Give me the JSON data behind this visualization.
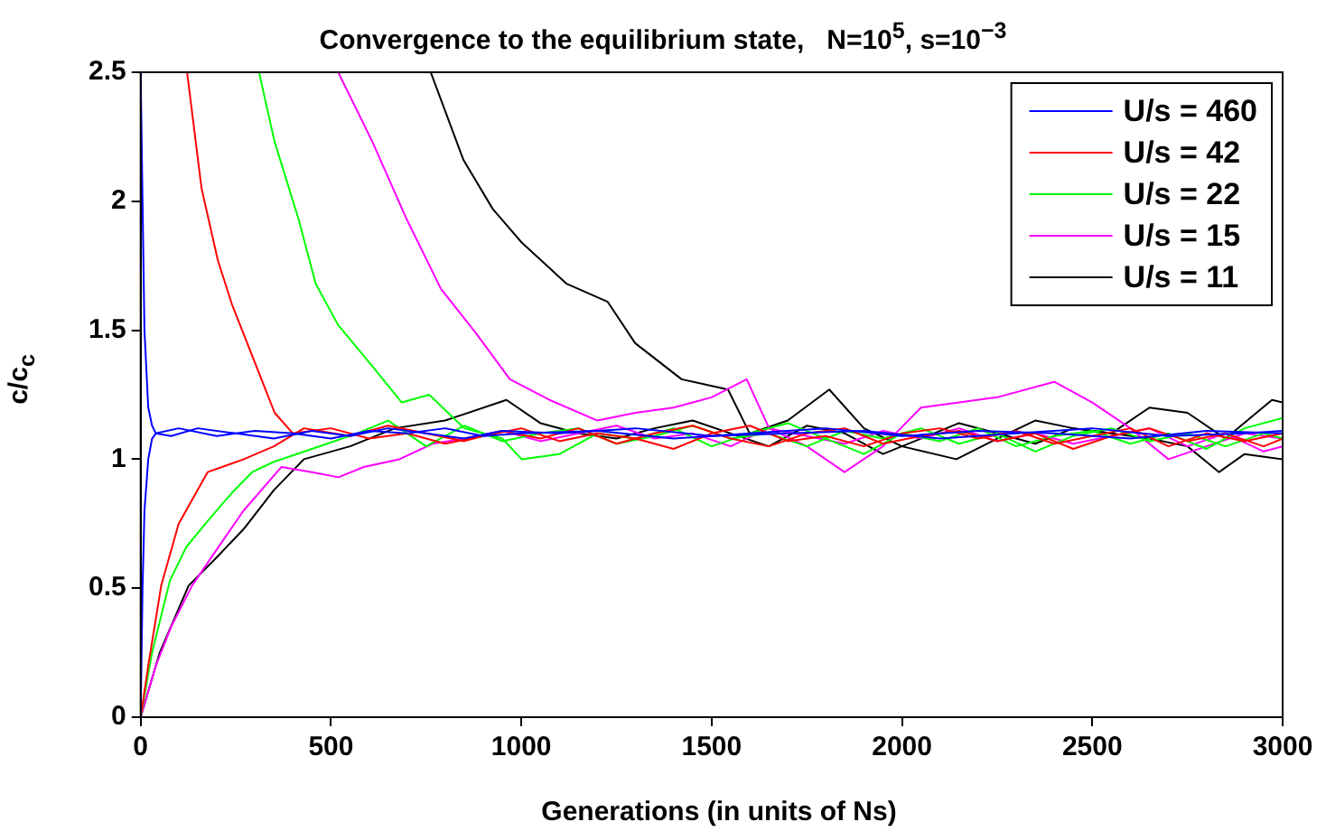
{
  "chart_data": {
    "type": "line",
    "title": "Convergence to the equilibrium state,   N=10$^{5}$, s=10$^{−3}$",
    "xlabel": "Generations (in units of Ns)",
    "ylabel": "c/c$_{c}$",
    "xlim": [
      0,
      3000
    ],
    "ylim": [
      0,
      2.5
    ],
    "xticks": [
      0,
      500,
      1000,
      1500,
      2000,
      2500,
      3000
    ],
    "yticks": [
      0,
      0.5,
      1,
      1.5,
      2,
      2.5
    ],
    "legend": "top right",
    "marker": "none",
    "line_style": "solid",
    "series": [
      {
        "name": "U/s = 460",
        "color": "#0000ff",
        "x": [
          0,
          5,
          10,
          20,
          30,
          40,
          100,
          200,
          300,
          400,
          500,
          600,
          700,
          800,
          900,
          1000,
          1200,
          1400,
          1600,
          1800,
          2000,
          2200,
          2400,
          2600,
          2800,
          3000
        ],
        "values": [
          2.5,
          2.0,
          1.5,
          1.2,
          1.13,
          1.1,
          1.12,
          1.09,
          1.11,
          1.1,
          1.08,
          1.11,
          1.1,
          1.12,
          1.09,
          1.1,
          1.11,
          1.08,
          1.1,
          1.12,
          1.09,
          1.11,
          1.1,
          1.08,
          1.11,
          1.1
        ]
      },
      {
        "color": "#0000ff",
        "x": [
          0,
          5,
          10,
          20,
          30,
          40,
          80,
          150,
          250,
          350,
          450,
          550,
          650,
          750,
          850,
          950,
          1100,
          1300,
          1500,
          1700,
          1900,
          2100,
          2300,
          2500,
          2700,
          2900,
          3000
        ],
        "values": [
          0,
          0.5,
          0.8,
          1.0,
          1.08,
          1.1,
          1.09,
          1.12,
          1.1,
          1.08,
          1.11,
          1.09,
          1.12,
          1.1,
          1.08,
          1.11,
          1.1,
          1.12,
          1.09,
          1.1,
          1.11,
          1.08,
          1.1,
          1.12,
          1.09,
          1.1,
          1.11
        ]
      },
      {
        "name": "U/s = 42",
        "color": "#ff0000",
        "x": [
          122,
          160,
          203,
          240,
          280,
          320,
          352,
          400,
          500,
          600,
          700,
          800,
          900,
          1000,
          1100,
          1200,
          1300,
          1400,
          1500,
          1600,
          1700,
          1800,
          1900,
          2000,
          2100,
          2200,
          2300,
          2400,
          2500,
          2600,
          2700,
          2800,
          2900,
          3000
        ],
        "values": [
          2.5,
          2.05,
          1.77,
          1.6,
          1.45,
          1.3,
          1.18,
          1.1,
          1.12,
          1.08,
          1.1,
          1.06,
          1.09,
          1.12,
          1.07,
          1.1,
          1.08,
          1.04,
          1.1,
          1.13,
          1.07,
          1.09,
          1.05,
          1.1,
          1.12,
          1.08,
          1.11,
          1.06,
          1.09,
          1.12,
          1.05,
          1.1,
          1.07,
          1.1
        ]
      },
      {
        "color": "#ff0000",
        "x": [
          0,
          20,
          54,
          100,
          176,
          271,
          350,
          429,
          550,
          650,
          750,
          850,
          950,
          1050,
          1150,
          1250,
          1350,
          1450,
          1550,
          1650,
          1750,
          1850,
          1950,
          2050,
          2150,
          2250,
          2350,
          2450,
          2550,
          2650,
          2750,
          2850,
          2950,
          3000
        ],
        "values": [
          0,
          0.2,
          0.51,
          0.75,
          0.95,
          1.0,
          1.05,
          1.12,
          1.09,
          1.13,
          1.1,
          1.07,
          1.11,
          1.08,
          1.12,
          1.06,
          1.1,
          1.13,
          1.08,
          1.05,
          1.1,
          1.12,
          1.06,
          1.09,
          1.11,
          1.07,
          1.1,
          1.04,
          1.09,
          1.12,
          1.07,
          1.1,
          1.05,
          1.08
        ]
      },
      {
        "name": "U/s = 22",
        "color": "#00ff00",
        "x": [
          311,
          352,
          415,
          460,
          519,
          609,
          686,
          758,
          850,
          950,
          1001,
          1100,
          1200,
          1300,
          1400,
          1500,
          1600,
          1700,
          1800,
          1900,
          2000,
          2100,
          2200,
          2300,
          2400,
          2500,
          2600,
          2700,
          2800,
          2900,
          3000
        ],
        "values": [
          2.5,
          2.23,
          1.93,
          1.68,
          1.52,
          1.36,
          1.22,
          1.25,
          1.12,
          1.08,
          1.0,
          1.02,
          1.1,
          1.08,
          1.12,
          1.05,
          1.1,
          1.14,
          1.08,
          1.02,
          1.1,
          1.07,
          1.12,
          1.05,
          1.09,
          1.11,
          1.06,
          1.1,
          1.04,
          1.12,
          1.16
        ]
      },
      {
        "color": "#00ff00",
        "x": [
          0,
          30,
          77,
          120,
          176,
          240,
          293,
          350,
          410,
          490,
          568,
          650,
          750,
          850,
          950,
          1050,
          1150,
          1250,
          1350,
          1450,
          1550,
          1650,
          1750,
          1850,
          1950,
          2050,
          2150,
          2250,
          2350,
          2450,
          2550,
          2650,
          2750,
          2850,
          2950,
          3000
        ],
        "values": [
          0,
          0.25,
          0.53,
          0.66,
          0.76,
          0.87,
          0.95,
          0.99,
          1.02,
          1.06,
          1.1,
          1.15,
          1.05,
          1.13,
          1.07,
          1.1,
          1.12,
          1.06,
          1.09,
          1.13,
          1.08,
          1.1,
          1.05,
          1.11,
          1.08,
          1.12,
          1.06,
          1.1,
          1.03,
          1.09,
          1.12,
          1.07,
          1.1,
          1.05,
          1.1,
          1.08
        ]
      },
      {
        "name": "U/s = 15",
        "color": "#ff00ff",
        "x": [
          519,
          609,
          699,
          789,
          880,
          970,
          1074,
          1200,
          1300,
          1400,
          1500,
          1592,
          1651,
          1750,
          1849,
          1950,
          2050,
          2150,
          2250,
          2400,
          2500,
          2600,
          2700,
          2800,
          2900,
          3000
        ],
        "values": [
          2.5,
          2.23,
          1.93,
          1.66,
          1.49,
          1.31,
          1.23,
          1.15,
          1.18,
          1.2,
          1.24,
          1.31,
          1.12,
          1.05,
          0.95,
          1.05,
          1.2,
          1.22,
          1.24,
          1.3,
          1.22,
          1.12,
          1.0,
          1.05,
          1.1,
          1.08
        ]
      },
      {
        "color": "#ff00ff",
        "x": [
          0,
          40,
          80,
          135,
          200,
          270,
          370,
          450,
          520,
          586,
          680,
          767,
          850,
          950,
          1050,
          1150,
          1250,
          1350,
          1450,
          1550,
          1650,
          1750,
          1850,
          1950,
          2050,
          2150,
          2250,
          2350,
          2450,
          2550,
          2650,
          2750,
          2850,
          2950,
          3000
        ],
        "values": [
          0,
          0.2,
          0.35,
          0.51,
          0.65,
          0.8,
          0.97,
          0.95,
          0.93,
          0.97,
          1.0,
          1.06,
          1.08,
          1.11,
          1.07,
          1.1,
          1.13,
          1.08,
          1.1,
          1.05,
          1.12,
          1.09,
          1.06,
          1.11,
          1.08,
          1.12,
          1.07,
          1.1,
          1.06,
          1.09,
          1.12,
          1.05,
          1.1,
          1.03,
          1.05
        ]
      },
      {
        "name": "U/s = 11",
        "color": "#000000",
        "x": [
          762,
          848,
          925,
          1001,
          1060,
          1119,
          1227,
          1299,
          1360,
          1421,
          1543,
          1600,
          1700,
          1809,
          1900,
          2000,
          2143,
          2250,
          2350,
          2450,
          2550,
          2650,
          2750,
          2850,
          2972,
          3000
        ],
        "values": [
          2.5,
          2.16,
          1.97,
          1.84,
          1.76,
          1.68,
          1.61,
          1.45,
          1.38,
          1.31,
          1.27,
          1.1,
          1.15,
          1.27,
          1.12,
          1.05,
          1.0,
          1.08,
          1.15,
          1.12,
          1.1,
          1.2,
          1.18,
          1.08,
          1.23,
          1.22
        ]
      },
      {
        "color": "#000000",
        "x": [
          0,
          50,
          126,
          200,
          271,
          350,
          429,
          550,
          668,
          800,
          961,
          1050,
          1150,
          1250,
          1350,
          1450,
          1550,
          1650,
          1750,
          1850,
          1950,
          2050,
          2150,
          2250,
          2350,
          2450,
          2550,
          2650,
          2750,
          2833,
          2900,
          3000
        ],
        "values": [
          0,
          0.25,
          0.51,
          0.62,
          0.73,
          0.88,
          1.0,
          1.05,
          1.12,
          1.15,
          1.23,
          1.14,
          1.1,
          1.08,
          1.12,
          1.15,
          1.1,
          1.05,
          1.13,
          1.1,
          1.02,
          1.08,
          1.14,
          1.1,
          1.06,
          1.12,
          1.1,
          1.08,
          1.05,
          0.95,
          1.02,
          1.0
        ]
      }
    ]
  }
}
